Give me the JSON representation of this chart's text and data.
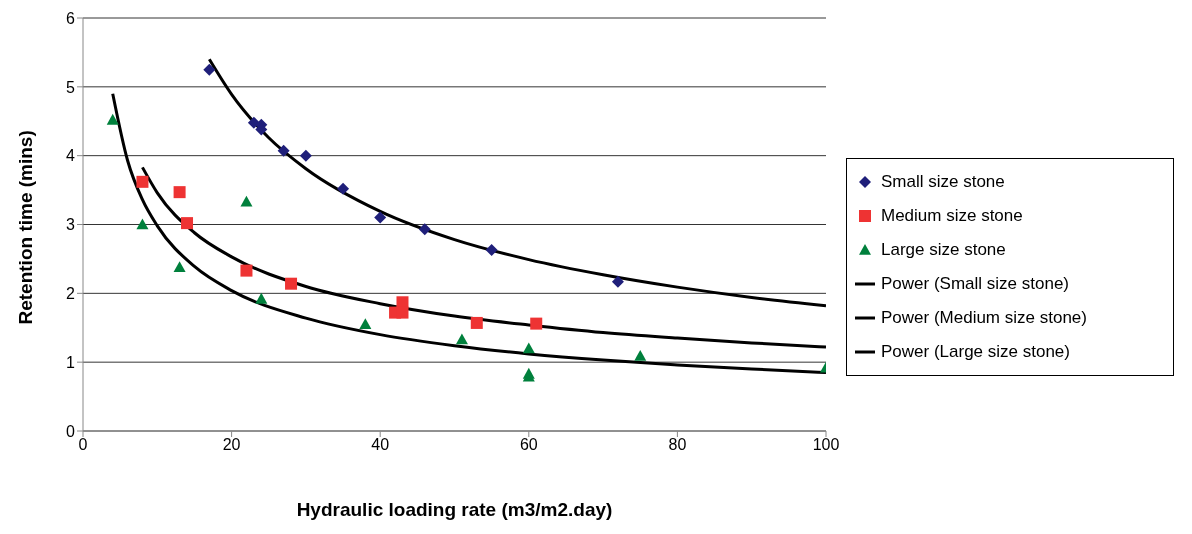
{
  "chart_data": {
    "type": "scatter",
    "xlabel": "Hydraulic loading rate (m3/m2.day)",
    "ylabel": "Retention time (mins)",
    "xlim": [
      0,
      100
    ],
    "xticks": [
      0,
      20,
      40,
      60,
      80,
      100
    ],
    "ylim": [
      0,
      6
    ],
    "yticks": [
      0,
      1,
      2,
      3,
      4,
      5,
      6
    ],
    "grid": "y",
    "legend": "right",
    "series": [
      {
        "name": "Small size stone",
        "marker": "diamond",
        "color": "#1f1f7a",
        "x": [
          17,
          23,
          24,
          24,
          27,
          30,
          35,
          40,
          46,
          55,
          72
        ],
        "values": [
          5.25,
          4.48,
          4.45,
          4.38,
          4.07,
          4.0,
          3.52,
          3.1,
          2.93,
          2.63,
          2.17
        ]
      },
      {
        "name": "Medium size stone",
        "marker": "square",
        "color": "#ee3333",
        "x": [
          8,
          13,
          14,
          22,
          28,
          42,
          43,
          43,
          53,
          61
        ],
        "values": [
          3.62,
          3.47,
          3.02,
          2.33,
          2.14,
          1.72,
          1.87,
          1.72,
          1.57,
          1.56
        ]
      },
      {
        "name": "Large size stone",
        "marker": "triangle",
        "color": "#00803c",
        "x": [
          4,
          8,
          13,
          22,
          24,
          38,
          51,
          60,
          60,
          60,
          75,
          100
        ],
        "values": [
          4.52,
          3.0,
          2.38,
          3.33,
          1.92,
          1.55,
          1.33,
          1.2,
          0.83,
          0.79,
          1.09,
          0.92
        ]
      },
      {
        "name": "Power (Small size stone)",
        "type": "line",
        "marker": "none",
        "color": "#000000",
        "x": [
          17,
          20,
          25,
          30,
          40,
          50,
          60,
          70,
          80,
          90,
          100
        ],
        "values": [
          5.4,
          4.89,
          4.26,
          3.81,
          3.19,
          2.78,
          2.49,
          2.27,
          2.09,
          1.94,
          1.82
        ]
      },
      {
        "name": "Power (Medium size stone)",
        "type": "line",
        "marker": "none",
        "color": "#000000",
        "x": [
          8,
          10,
          15,
          20,
          30,
          40,
          50,
          60,
          70,
          80,
          90,
          100
        ],
        "values": [
          3.83,
          3.46,
          2.88,
          2.53,
          2.1,
          1.85,
          1.67,
          1.54,
          1.43,
          1.35,
          1.28,
          1.22
        ]
      },
      {
        "name": "Power (Large size stone)",
        "type": "line",
        "marker": "none",
        "color": "#000000",
        "x": [
          4,
          6,
          8,
          10,
          15,
          20,
          30,
          40,
          50,
          60,
          70,
          80,
          90,
          100
        ],
        "values": [
          4.9,
          3.93,
          3.36,
          2.98,
          2.39,
          2.04,
          1.64,
          1.4,
          1.24,
          1.12,
          1.03,
          0.96,
          0.9,
          0.85
        ]
      }
    ]
  }
}
